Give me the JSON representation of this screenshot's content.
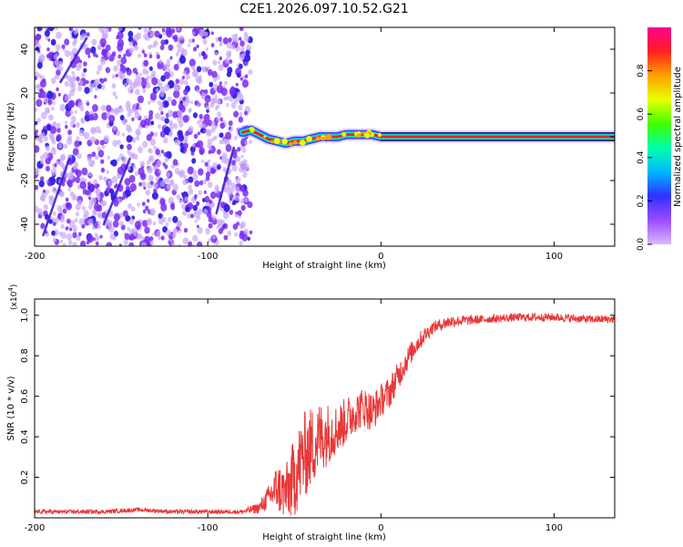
{
  "title": "C2E1.2026.097.10.52.G21",
  "colors": {
    "snr_line": "#e83838",
    "point_purple": "#7a2bf2",
    "point_light": "#c8a8f8",
    "colormap": [
      "#d8b8ff",
      "#9b4dff",
      "#3030ff",
      "#00b8ff",
      "#00ffaa",
      "#40ff00",
      "#e8ff00",
      "#ffa000",
      "#ff2020",
      "#ff0090"
    ]
  },
  "chart_data": [
    {
      "type": "heatmap",
      "name": "spectrogram",
      "xlabel": "Height of straight line (km)",
      "ylabel": "Frequency (Hz)",
      "xlim": [
        -200,
        135
      ],
      "ylim": [
        -50,
        50
      ],
      "xticks": [
        -200,
        -100,
        0,
        100
      ],
      "xtick_labels": [
        "-200",
        "-100",
        "0",
        "100"
      ],
      "yticks": [
        -40,
        -20,
        0,
        20,
        40
      ],
      "ytick_labels": [
        "-40",
        "-20",
        "0",
        "20",
        "40"
      ],
      "scatter_region": {
        "x_start": -200,
        "x_end": -75
      },
      "signal_track": {
        "x": [
          -80,
          -75,
          -70,
          -65,
          -60,
          -55,
          -50,
          -45,
          -40,
          -35,
          -30,
          -25,
          -20,
          -15,
          -10,
          -5,
          0,
          10,
          50,
          100,
          135
        ],
        "y": [
          2,
          3,
          1,
          -1,
          -2,
          -3,
          -2,
          -2,
          -1,
          0,
          0,
          0,
          1,
          1,
          1,
          1,
          0,
          0,
          0,
          0,
          0
        ]
      },
      "colorbar": {
        "label": "Normalized spectral amplitude",
        "range": [
          0,
          1
        ],
        "ticks": [
          0.0,
          0.2,
          0.4,
          0.6,
          0.8
        ],
        "tick_labels": [
          "0.0",
          "0.2",
          "0.4",
          "0.6",
          "0.8"
        ]
      }
    },
    {
      "type": "line",
      "name": "snr",
      "xlabel": "Height of straight line (km)",
      "ylabel": "SNR (10 * v/v)",
      "multiplier": "(x10",
      "multiplier_exp": "4",
      "multiplier_close": ")",
      "xlim": [
        -200,
        135
      ],
      "ylim": [
        0,
        1.08
      ],
      "xticks": [
        -200,
        -100,
        0,
        100
      ],
      "xtick_labels": [
        "-200",
        "-100",
        "0",
        "100"
      ],
      "yticks": [
        0.2,
        0.4,
        0.6,
        0.8,
        1.0
      ],
      "ytick_labels": [
        "0.2",
        "0.4",
        "0.6",
        "0.8",
        "1.0"
      ],
      "series": [
        {
          "name": "SNR",
          "x": [
            -200,
            -180,
            -160,
            -140,
            -120,
            -100,
            -80,
            -70,
            -65,
            -60,
            -55,
            -50,
            -45,
            -40,
            -35,
            -30,
            -25,
            -20,
            -15,
            -10,
            -5,
            0,
            5,
            10,
            15,
            20,
            25,
            30,
            40,
            60,
            80,
            100,
            120,
            135
          ],
          "y": [
            0.03,
            0.03,
            0.03,
            0.04,
            0.03,
            0.03,
            0.03,
            0.05,
            0.1,
            0.15,
            0.12,
            0.2,
            0.3,
            0.35,
            0.4,
            0.42,
            0.44,
            0.48,
            0.52,
            0.55,
            0.52,
            0.58,
            0.62,
            0.7,
            0.78,
            0.85,
            0.9,
            0.94,
            0.97,
            0.98,
            0.99,
            0.99,
            0.98,
            0.98
          ],
          "noise": [
            0.01,
            0.01,
            0.01,
            0.01,
            0.01,
            0.01,
            0.01,
            0.03,
            0.06,
            0.12,
            0.14,
            0.2,
            0.22,
            0.2,
            0.18,
            0.15,
            0.12,
            0.12,
            0.1,
            0.1,
            0.1,
            0.08,
            0.08,
            0.07,
            0.06,
            0.05,
            0.04,
            0.03,
            0.03,
            0.02,
            0.02,
            0.02,
            0.02,
            0.02
          ]
        }
      ]
    }
  ]
}
